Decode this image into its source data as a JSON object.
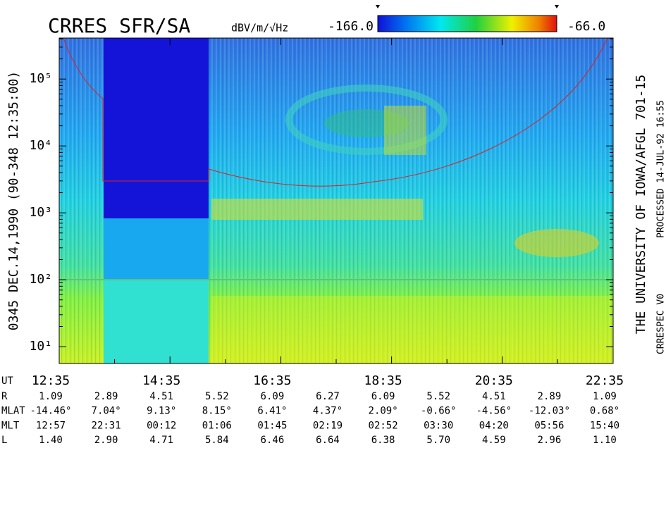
{
  "chart_data": {
    "type": "spectrogram",
    "title": "CRRES SFR/SA",
    "ylabel": "0345   DEC.14,1990   (90-348 12:35:00)",
    "colorbar": {
      "label": "dBV/m/√Hz",
      "ticks": [
        {
          "value": -166,
          "label": "-166.0"
        },
        {
          "value": -66,
          "label": "-66.0"
        }
      ]
    },
    "log_y": true,
    "ylim": [
      5.6,
      410000
    ],
    "yticks": [
      {
        "value": 10,
        "label": "10¹"
      },
      {
        "value": 100,
        "label": "10²"
      },
      {
        "value": 1000,
        "label": "10³"
      },
      {
        "value": 10000,
        "label": "10⁴"
      },
      {
        "value": 100000,
        "label": "10⁵"
      }
    ],
    "xticks": [
      "12:35",
      "14:35",
      "16:35",
      "18:35",
      "20:35",
      "22:35"
    ],
    "ephemeris": {
      "time_label": "UT",
      "rows": [
        {
          "name": "R",
          "values": [
            "1.09",
            "2.89",
            "4.51",
            "5.52",
            "6.09",
            "6.27",
            "6.09",
            "5.52",
            "4.51",
            "2.89",
            "1.09"
          ]
        },
        {
          "name": "MLAT",
          "values": [
            "-14.46°",
            "7.04°",
            "9.13°",
            "8.15°",
            "6.41°",
            "4.37°",
            "2.09°",
            "-0.66°",
            "-4.56°",
            "-12.03°",
            "0.68°"
          ]
        },
        {
          "name": "MLT",
          "values": [
            "12:57",
            "22:31",
            "00:12",
            "01:06",
            "01:45",
            "02:19",
            "02:52",
            "03:30",
            "04:20",
            "05:56",
            "15:40"
          ]
        },
        {
          "name": "L",
          "values": [
            "1.40",
            "2.90",
            "4.71",
            "5.84",
            "6.46",
            "6.64",
            "6.38",
            "5.70",
            "4.59",
            "2.96",
            "1.10"
          ]
        }
      ]
    },
    "credits": [
      "THE UNIVERSITY OF IOWA/AFGL 701-15",
      "PROCESSED 14-JUL-92  16:55",
      "CRRESPEC V0"
    ]
  }
}
